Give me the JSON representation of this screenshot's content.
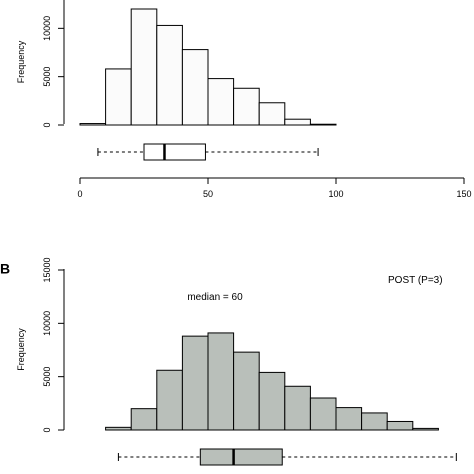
{
  "chart_data": [
    {
      "panel": "",
      "type": "bar",
      "ylabel": "Frequency",
      "yticks": [
        0,
        5000,
        10000
      ],
      "xticks": [
        0,
        50,
        100,
        150
      ],
      "ylim": [
        0,
        15000
      ],
      "xlim": [
        0,
        150
      ],
      "bin_edges": [
        0,
        10,
        20,
        30,
        40,
        50,
        60,
        70,
        80,
        90,
        100
      ],
      "values": [
        150,
        5800,
        12000,
        10300,
        7800,
        4800,
        3800,
        2300,
        600,
        80
      ],
      "bar_color": "#fbfbfb",
      "boxplot": {
        "whisker_low": 7,
        "q1": 25,
        "median": 33,
        "q3": 49,
        "whisker_high": 93
      },
      "annotations": []
    },
    {
      "panel": "B",
      "type": "bar",
      "ylabel": "Frequency",
      "yticks": [
        0,
        5000,
        10000,
        15000
      ],
      "xticks": [],
      "ylim": [
        0,
        15000
      ],
      "xlim": [
        0,
        150
      ],
      "bin_edges": [
        10,
        20,
        30,
        40,
        50,
        60,
        70,
        80,
        90,
        100,
        110,
        120,
        130,
        140
      ],
      "values": [
        250,
        2000,
        5600,
        8800,
        9100,
        7300,
        5400,
        4100,
        3000,
        2100,
        1600,
        800,
        150
      ],
      "bar_color": "#b9bfba",
      "boxplot": {
        "whisker_low": 15,
        "q1": 47,
        "median": 60,
        "q3": 79,
        "whisker_high": 147
      },
      "annotations": [
        "median = 60",
        "POST (P=3)"
      ]
    }
  ]
}
